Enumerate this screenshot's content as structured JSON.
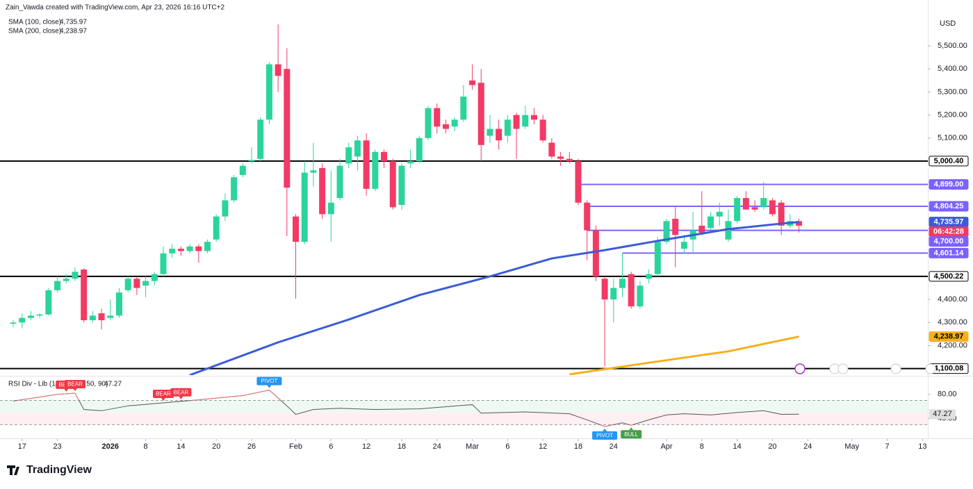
{
  "attribution": "Zain_Vawda created with TradingView.com, Apr 23, 2026 16:16 UTC+2",
  "brand": "TradingView",
  "chart_data": [
    {
      "type": "candlestick",
      "currency": "USD",
      "up_color": "#2bd49c",
      "down_color": "#f23a65",
      "xlim": [
        -2.5,
        102.6
      ],
      "ylim": [
        4072,
        5699
      ],
      "grid": false,
      "x": [
        -1,
        0,
        1,
        2,
        3,
        4,
        5,
        6,
        7,
        8,
        9,
        10,
        11,
        12,
        13,
        14,
        15,
        16,
        17,
        18,
        19,
        20,
        21,
        22,
        23,
        24,
        25,
        26,
        27,
        28,
        29,
        30,
        31,
        32,
        33,
        34,
        35,
        36,
        37,
        38,
        39,
        40,
        41,
        42,
        43,
        44,
        45,
        46,
        47,
        48,
        49,
        50,
        51,
        52,
        53,
        54,
        55,
        56,
        57,
        58,
        59,
        60,
        61,
        62,
        63,
        64,
        65,
        66,
        67,
        68,
        69,
        70,
        71,
        72,
        73,
        74,
        75,
        76,
        77,
        78,
        79,
        80,
        81,
        82,
        83,
        84,
        85,
        86,
        87,
        88
      ],
      "open": [
        4295,
        4300,
        4320,
        4330,
        4335,
        4440,
        4480,
        4490,
        4530,
        4310,
        4340,
        4320,
        4330,
        4440,
        4490,
        4460,
        4480,
        4510,
        4600,
        4620,
        4610,
        4630,
        4610,
        4660,
        4760,
        4830,
        4940,
        5000,
        5010,
        5180,
        5420,
        5400,
        4760,
        4650,
        4950,
        4970,
        4770,
        4840,
        4990,
        5020,
        5090,
        4880,
        5040,
        5000,
        4810,
        4990,
        5000,
        5100,
        5230,
        5160,
        5150,
        5180,
        5350,
        5340,
        5110,
        5140,
        5110,
        5200,
        5150,
        5200,
        5180,
        5080,
        5020,
        5010,
        5000,
        4820,
        4700,
        4490,
        4400,
        4450,
        4510,
        4370,
        4490,
        4510,
        4650,
        4750,
        4620,
        4660,
        4720,
        4710,
        4760,
        4660,
        4740,
        4840,
        4800,
        4800,
        4830,
        4820,
        4720,
        4740
      ],
      "high": [
        4310,
        4340,
        4350,
        4340,
        4450,
        4500,
        4510,
        4540,
        4535,
        4350,
        4360,
        4400,
        4450,
        4500,
        4500,
        4500,
        4520,
        4630,
        4640,
        4630,
        4640,
        4640,
        4660,
        4770,
        4860,
        4940,
        4990,
        5060,
        5190,
        5430,
        5593,
        5490,
        4770,
        5000,
        5080,
        4990,
        4960,
        5010,
        5080,
        5110,
        5120,
        5050,
        5050,
        5010,
        4990,
        5050,
        5110,
        5240,
        5250,
        5180,
        5190,
        5330,
        5420,
        5400,
        5200,
        5180,
        5200,
        5210,
        5240,
        5230,
        5200,
        5100,
        5040,
        5040,
        5010,
        4830,
        4720,
        4500,
        4490,
        4600,
        4520,
        4480,
        4530,
        4670,
        4750,
        4800,
        4680,
        4780,
        4870,
        4780,
        4820,
        4790,
        4850,
        4870,
        4830,
        4910,
        4840,
        4830,
        4770,
        4750
      ],
      "low": [
        4280,
        4275,
        4310,
        4320,
        4330,
        4430,
        4470,
        4480,
        4300,
        4300,
        4270,
        4310,
        4320,
        4430,
        4420,
        4410,
        4460,
        4500,
        4580,
        4590,
        4600,
        4560,
        4600,
        4650,
        4740,
        4820,
        4930,
        4990,
        5000,
        5160,
        5300,
        4675,
        4404,
        4640,
        4890,
        4750,
        4650,
        4830,
        4970,
        4960,
        4850,
        4870,
        4970,
        4790,
        4790,
        4970,
        4990,
        5090,
        5120,
        5120,
        5130,
        5170,
        5310,
        5000,
        5080,
        5050,
        5080,
        5010,
        5140,
        5160,
        5080,
        5010,
        4980,
        4990,
        4810,
        4570,
        4480,
        4110,
        4300,
        4410,
        4360,
        4360,
        4470,
        4500,
        4640,
        4540,
        4600,
        4600,
        4680,
        4700,
        4720,
        4650,
        4730,
        4790,
        4780,
        4790,
        4760,
        4680,
        4710,
        4690
      ],
      "close": [
        4300,
        4320,
        4330,
        4335,
        4440,
        4480,
        4490,
        4520,
        4310,
        4330,
        4310,
        4330,
        4430,
        4490,
        4450,
        4480,
        4510,
        4600,
        4620,
        4610,
        4630,
        4610,
        4650,
        4760,
        4830,
        4930,
        4980,
        5005,
        5180,
        5420,
        5370,
        4885,
        4650,
        4950,
        4960,
        4770,
        4820,
        4980,
        5060,
        5090,
        4880,
        5040,
        5000,
        4800,
        4980,
        5000,
        5100,
        5230,
        5150,
        5140,
        5180,
        5280,
        5330,
        5070,
        5140,
        5090,
        5180,
        5140,
        5200,
        5180,
        5090,
        5020,
        5010,
        5000,
        4820,
        4700,
        4500,
        4400,
        4450,
        4490,
        4370,
        4460,
        4510,
        4650,
        4740,
        4680,
        4650,
        4700,
        4690,
        4760,
        4780,
        4740,
        4840,
        4790,
        4790,
        4840,
        4770,
        4720,
        4740,
        4720
      ],
      "countdown": "06:42:28",
      "yticks": [
        {
          "value": 5500,
          "label": "5,500.00"
        },
        {
          "value": 5400,
          "label": "5,400.00"
        },
        {
          "value": 5300,
          "label": "5,300.00"
        },
        {
          "value": 5200,
          "label": "5,200.00"
        },
        {
          "value": 5100,
          "label": "5,100.00"
        },
        {
          "value": 4400,
          "label": "4,400.00"
        },
        {
          "value": 4300,
          "label": "4,300.00"
        },
        {
          "value": 4200,
          "label": "4,200.00"
        }
      ],
      "xticks": [
        {
          "value": 0,
          "label": "17"
        },
        {
          "value": 4,
          "label": "23"
        },
        {
          "value": 10,
          "label": "2026"
        },
        {
          "value": 14,
          "label": "8"
        },
        {
          "value": 18,
          "label": "14"
        },
        {
          "value": 22,
          "label": "20"
        },
        {
          "value": 26,
          "label": "26"
        },
        {
          "value": 31,
          "label": "Feb"
        },
        {
          "value": 35,
          "label": "6"
        },
        {
          "value": 39,
          "label": "12"
        },
        {
          "value": 43,
          "label": "18"
        },
        {
          "value": 47,
          "label": "24"
        },
        {
          "value": 51,
          "label": "Mar"
        },
        {
          "value": 55,
          "label": "6"
        },
        {
          "value": 59,
          "label": "12"
        },
        {
          "value": 63,
          "label": "18"
        },
        {
          "value": 67,
          "label": "24"
        },
        {
          "value": 73,
          "label": "Apr"
        },
        {
          "value": 77,
          "label": "8"
        },
        {
          "value": 81,
          "label": "14"
        },
        {
          "value": 85,
          "label": "20"
        },
        {
          "value": 89,
          "label": "24"
        },
        {
          "value": 94,
          "label": "May"
        },
        {
          "value": 98,
          "label": "7"
        },
        {
          "value": 102,
          "label": "13"
        }
      ],
      "levels": [
        {
          "value": 5000.4,
          "label": "5,000.40",
          "color": "#000000"
        },
        {
          "value": 4899,
          "label": "4,899.00",
          "color": "#7b61ff",
          "from": 63
        },
        {
          "value": 4804.25,
          "label": "4,804.25",
          "color": "#7b61ff",
          "from": 64
        },
        {
          "value": 4700,
          "label": "4,700.00",
          "color": "#7b61ff",
          "from": 64
        },
        {
          "value": 4601.14,
          "label": "4,601.14",
          "color": "#7b61ff",
          "from": 68
        },
        {
          "value": 4500.22,
          "label": "4,500.22",
          "color": "#000000"
        },
        {
          "value": 4100.08,
          "label": "4,100.08",
          "color": "#000000"
        }
      ],
      "series": [
        {
          "name": "SMA (100, close)",
          "color": "#3a5bd9",
          "x": [
            19,
            29,
            37,
            45,
            53,
            60,
            66,
            72,
            80,
            86,
            88
          ],
          "values": [
            4072,
            4214,
            4313,
            4419,
            4500,
            4578,
            4614,
            4654,
            4705,
            4729,
            4735.97
          ],
          "last_label": "4,735.97"
        },
        {
          "name": "SMA (200, close)",
          "color": "#f5b01a",
          "x": [
            62,
            70,
            80,
            88
          ],
          "values": [
            4075,
            4120,
            4175,
            4238.97
          ],
          "last_label": "4,238.97"
        }
      ]
    },
    {
      "type": "line",
      "title": "RSI Div - Lib (14, 70, 30, 50, 90)",
      "xlim": [
        -2.5,
        102.6
      ],
      "ylim": [
        11,
        106
      ],
      "yticks": [
        {
          "value": 80,
          "label": "80.00"
        },
        {
          "value": 40,
          "label": "40.00"
        }
      ],
      "bands": [
        70,
        30
      ],
      "midline": 50,
      "color": "#555555",
      "extreme_color": "#f07070",
      "x": [
        -1,
        4,
        6,
        7,
        9,
        12,
        16,
        20,
        25,
        28,
        30,
        31,
        33,
        36,
        40,
        45,
        50,
        51,
        52,
        57,
        62,
        64,
        66,
        67,
        68,
        69,
        71,
        73,
        75,
        78,
        81,
        84,
        86,
        88
      ],
      "values": [
        69,
        80,
        82,
        55,
        53,
        61,
        66,
        71,
        78,
        87,
        61,
        47,
        55,
        57,
        55,
        56,
        62,
        63,
        49,
        51,
        48,
        38,
        27,
        30,
        33,
        29,
        38,
        46,
        48,
        46,
        50,
        53,
        47,
        47.27
      ],
      "last_label": "47.27",
      "signals": [
        {
          "label": "BEAR",
          "x": 5,
          "position": "above",
          "color": "#f23645"
        },
        {
          "label": "BEAR",
          "x": 6,
          "position": "above",
          "color": "#f23645"
        },
        {
          "label": "BEAR",
          "x": 16,
          "position": "above",
          "color": "#f23645"
        },
        {
          "label": "BEAR",
          "x": 18,
          "position": "above",
          "color": "#f23645"
        },
        {
          "label": "PIVOT",
          "x": 28,
          "position": "above",
          "color": "#2196f3"
        },
        {
          "label": "PIVOT",
          "x": 66,
          "position": "below",
          "color": "#2196f3"
        },
        {
          "label": "BULL",
          "x": 69,
          "position": "below",
          "color": "#43a047"
        }
      ]
    }
  ]
}
